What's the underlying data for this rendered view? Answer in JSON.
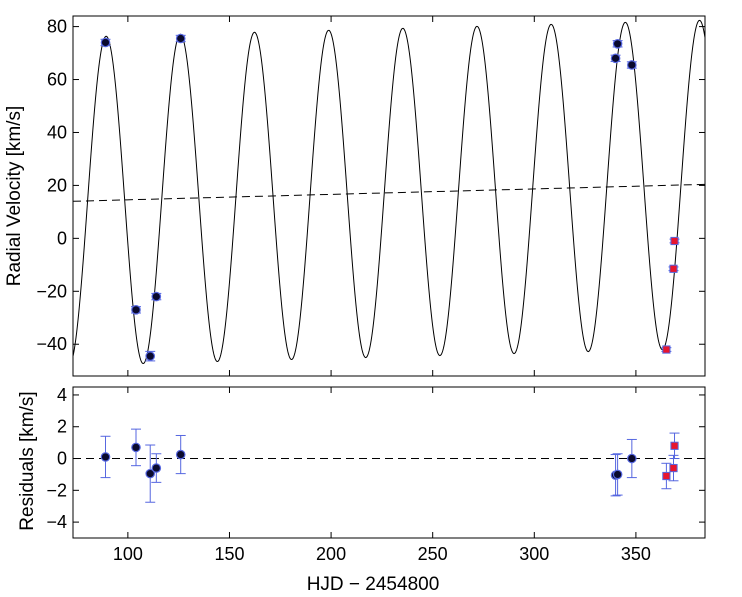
{
  "chart_data": [
    {
      "panel": "top",
      "type": "scatter",
      "ylabel": "Radial Velocity [km/s]",
      "xlim": [
        73,
        384
      ],
      "ylim": [
        -52,
        84
      ],
      "yticks": [
        -40,
        -20,
        0,
        20,
        40,
        60,
        80
      ],
      "model": {
        "name": "orbit fit",
        "style": "solid",
        "gamma": 14.0,
        "amplitude": 62.0,
        "period": 36.5,
        "reference_max_x": 89.3,
        "trend_slope": 0.0206,
        "trend_x0": 73
      },
      "trend": {
        "name": "linear trend",
        "style": "dashed",
        "x": [
          73,
          384
        ],
        "y": [
          14.0,
          20.4
        ]
      },
      "series": [
        {
          "name": "black circles",
          "marker": "circle",
          "color": "#0a0a2e",
          "x": [
            89,
            104,
            111,
            114,
            126,
            340,
            341,
            348
          ],
          "y": [
            74,
            -27,
            -44.5,
            -22,
            75.5,
            68,
            73.5,
            65.5
          ],
          "yerr": [
            1.2,
            1.2,
            1.8,
            1.2,
            1.2,
            1.2,
            1.2,
            1.2
          ]
        },
        {
          "name": "red squares",
          "marker": "square",
          "color": "#e8152e",
          "x": [
            365,
            368.5,
            369
          ],
          "y": [
            -42,
            -11.5,
            -1
          ],
          "yerr": [
            0.7,
            0.7,
            0.7
          ]
        }
      ]
    },
    {
      "panel": "bottom",
      "type": "scatter",
      "xlabel": "HJD − 2454800",
      "ylabel": "Residuals [km/s]",
      "xlim": [
        73,
        384
      ],
      "ylim": [
        -5,
        4.5
      ],
      "yticks": [
        -4,
        -2,
        0,
        2,
        4
      ],
      "xticks": [
        100,
        150,
        200,
        250,
        300,
        350
      ],
      "zero_line": {
        "style": "dashed",
        "y": 0
      },
      "series": [
        {
          "name": "black circles",
          "marker": "circle",
          "color": "#0a0a2e",
          "x": [
            89,
            104,
            111,
            114,
            126,
            340,
            341,
            348
          ],
          "y": [
            0.1,
            0.7,
            -0.95,
            -0.6,
            0.25,
            -1.05,
            -1.0,
            0.0
          ],
          "yerr": [
            1.3,
            1.15,
            1.8,
            0.9,
            1.2,
            1.3,
            1.3,
            1.2
          ]
        },
        {
          "name": "red squares",
          "marker": "square",
          "color": "#e8152e",
          "x": [
            365,
            368.5,
            369
          ],
          "y": [
            -1.1,
            -0.6,
            0.8
          ],
          "yerr": [
            0.8,
            0.8,
            0.8
          ]
        }
      ],
      "errorbar_color": "#5566e0"
    }
  ]
}
